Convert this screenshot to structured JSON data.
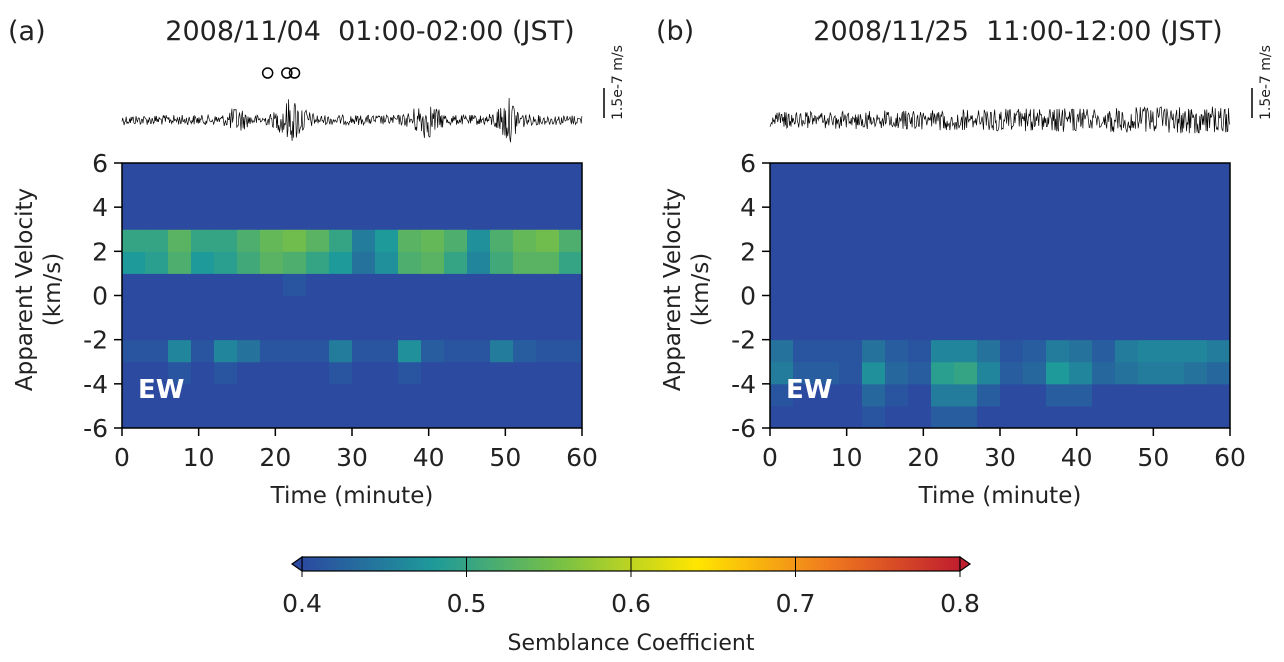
{
  "chart_data": [
    {
      "type": "heatmap",
      "panel_label": "(a)",
      "title": "2008/11/04  01:00-02:00 (JST)",
      "annotation": "EW",
      "scale_label": "1.5e-7 m/s",
      "xlabel": "Time (minute)",
      "ylabel": "Apparent Velocity",
      "ylabel_unit": "(km/s)",
      "xlim": [
        0,
        60
      ],
      "xticks": [
        0,
        10,
        20,
        30,
        40,
        50,
        60
      ],
      "ylim": [
        -6,
        6
      ],
      "yticks": [
        -6,
        -4,
        -2,
        0,
        2,
        4,
        6
      ],
      "events": [
        19,
        21.5,
        22.5
      ],
      "x": [
        1.5,
        4.5,
        7.5,
        10.5,
        13.5,
        16.5,
        19.5,
        22.5,
        25.5,
        28.5,
        31.5,
        34.5,
        37.5,
        40.5,
        43.5,
        46.5,
        49.5,
        52.5,
        55.5,
        58.5
      ],
      "y": [
        -5.5,
        -4.5,
        -3.5,
        -2.5,
        -1.5,
        -0.5,
        0.5,
        1.5,
        2.5,
        3.5,
        4.5,
        5.5
      ],
      "z": [
        [
          0.4,
          0.4,
          0.4,
          0.4,
          0.4,
          0.4,
          0.4,
          0.4,
          0.4,
          0.4,
          0.4,
          0.4,
          0.4,
          0.4,
          0.4,
          0.4,
          0.4,
          0.4,
          0.4,
          0.4
        ],
        [
          0.4,
          0.4,
          0.4,
          0.4,
          0.4,
          0.4,
          0.4,
          0.4,
          0.4,
          0.4,
          0.4,
          0.4,
          0.4,
          0.4,
          0.4,
          0.4,
          0.4,
          0.4,
          0.4,
          0.4
        ],
        [
          0.4,
          0.4,
          0.41,
          0.4,
          0.41,
          0.4,
          0.4,
          0.4,
          0.4,
          0.41,
          0.4,
          0.4,
          0.41,
          0.4,
          0.4,
          0.4,
          0.4,
          0.4,
          0.4,
          0.4
        ],
        [
          0.41,
          0.41,
          0.46,
          0.41,
          0.46,
          0.44,
          0.41,
          0.41,
          0.41,
          0.45,
          0.41,
          0.41,
          0.47,
          0.42,
          0.41,
          0.41,
          0.45,
          0.42,
          0.41,
          0.41
        ],
        [
          0.4,
          0.4,
          0.4,
          0.4,
          0.4,
          0.4,
          0.4,
          0.4,
          0.4,
          0.4,
          0.4,
          0.4,
          0.4,
          0.4,
          0.4,
          0.4,
          0.4,
          0.4,
          0.4,
          0.4
        ],
        [
          0.4,
          0.4,
          0.4,
          0.4,
          0.4,
          0.4,
          0.4,
          0.4,
          0.4,
          0.4,
          0.4,
          0.4,
          0.4,
          0.4,
          0.4,
          0.4,
          0.4,
          0.4,
          0.4,
          0.4
        ],
        [
          0.4,
          0.4,
          0.4,
          0.4,
          0.4,
          0.4,
          0.4,
          0.41,
          0.4,
          0.4,
          0.4,
          0.4,
          0.4,
          0.4,
          0.4,
          0.4,
          0.4,
          0.4,
          0.4,
          0.4
        ],
        [
          0.48,
          0.49,
          0.52,
          0.48,
          0.49,
          0.51,
          0.53,
          0.52,
          0.5,
          0.48,
          0.44,
          0.47,
          0.52,
          0.53,
          0.5,
          0.46,
          0.51,
          0.53,
          0.53,
          0.5
        ],
        [
          0.5,
          0.5,
          0.53,
          0.5,
          0.5,
          0.52,
          0.54,
          0.55,
          0.53,
          0.5,
          0.45,
          0.48,
          0.53,
          0.54,
          0.52,
          0.47,
          0.52,
          0.54,
          0.55,
          0.52
        ],
        [
          0.4,
          0.4,
          0.4,
          0.4,
          0.4,
          0.4,
          0.4,
          0.4,
          0.4,
          0.4,
          0.4,
          0.4,
          0.4,
          0.4,
          0.4,
          0.4,
          0.4,
          0.4,
          0.4,
          0.4
        ],
        [
          0.4,
          0.4,
          0.4,
          0.4,
          0.4,
          0.4,
          0.4,
          0.4,
          0.4,
          0.4,
          0.4,
          0.4,
          0.4,
          0.4,
          0.4,
          0.4,
          0.4,
          0.4,
          0.4,
          0.4
        ],
        [
          0.4,
          0.4,
          0.4,
          0.4,
          0.4,
          0.4,
          0.4,
          0.4,
          0.4,
          0.4,
          0.4,
          0.4,
          0.4,
          0.4,
          0.4,
          0.4,
          0.4,
          0.4,
          0.4,
          0.4
        ]
      ]
    },
    {
      "type": "heatmap",
      "panel_label": "(b)",
      "title": "2008/11/25  11:00-12:00 (JST)",
      "annotation": "EW",
      "scale_label": "1.5e-7 m/s",
      "xlabel": "Time (minute)",
      "ylabel": "Apparent Velocity",
      "ylabel_unit": "(km/s)",
      "xlim": [
        0,
        60
      ],
      "xticks": [
        0,
        10,
        20,
        30,
        40,
        50,
        60
      ],
      "ylim": [
        -6,
        6
      ],
      "yticks": [
        -6,
        -4,
        -2,
        0,
        2,
        4,
        6
      ],
      "x": [
        1.5,
        4.5,
        7.5,
        10.5,
        13.5,
        16.5,
        19.5,
        22.5,
        25.5,
        28.5,
        31.5,
        34.5,
        37.5,
        40.5,
        43.5,
        46.5,
        49.5,
        52.5,
        55.5,
        58.5
      ],
      "y": [
        -5.5,
        -4.5,
        -3.5,
        -2.5,
        -1.5,
        -0.5,
        0.5,
        1.5,
        2.5,
        3.5,
        4.5,
        5.5
      ],
      "z": [
        [
          0.4,
          0.4,
          0.4,
          0.4,
          0.41,
          0.4,
          0.4,
          0.42,
          0.42,
          0.4,
          0.4,
          0.4,
          0.4,
          0.4,
          0.4,
          0.4,
          0.4,
          0.4,
          0.4,
          0.4
        ],
        [
          0.41,
          0.4,
          0.4,
          0.4,
          0.43,
          0.41,
          0.4,
          0.45,
          0.45,
          0.42,
          0.4,
          0.4,
          0.42,
          0.42,
          0.4,
          0.4,
          0.4,
          0.4,
          0.4,
          0.4
        ],
        [
          0.45,
          0.42,
          0.42,
          0.41,
          0.47,
          0.43,
          0.42,
          0.49,
          0.5,
          0.46,
          0.42,
          0.43,
          0.48,
          0.46,
          0.43,
          0.44,
          0.45,
          0.45,
          0.44,
          0.43
        ],
        [
          0.44,
          0.41,
          0.41,
          0.41,
          0.44,
          0.42,
          0.41,
          0.46,
          0.46,
          0.44,
          0.41,
          0.42,
          0.45,
          0.44,
          0.42,
          0.45,
          0.46,
          0.46,
          0.46,
          0.45
        ],
        [
          0.4,
          0.4,
          0.4,
          0.4,
          0.4,
          0.4,
          0.4,
          0.4,
          0.4,
          0.4,
          0.4,
          0.4,
          0.4,
          0.4,
          0.4,
          0.4,
          0.4,
          0.4,
          0.4,
          0.4
        ],
        [
          0.4,
          0.4,
          0.4,
          0.4,
          0.4,
          0.4,
          0.4,
          0.4,
          0.4,
          0.4,
          0.4,
          0.4,
          0.4,
          0.4,
          0.4,
          0.4,
          0.4,
          0.4,
          0.4,
          0.4
        ],
        [
          0.4,
          0.4,
          0.4,
          0.4,
          0.4,
          0.4,
          0.4,
          0.4,
          0.4,
          0.4,
          0.4,
          0.4,
          0.4,
          0.4,
          0.4,
          0.4,
          0.4,
          0.4,
          0.4,
          0.4
        ],
        [
          0.4,
          0.4,
          0.4,
          0.4,
          0.4,
          0.4,
          0.4,
          0.4,
          0.4,
          0.4,
          0.4,
          0.4,
          0.4,
          0.4,
          0.4,
          0.4,
          0.4,
          0.4,
          0.4,
          0.4
        ],
        [
          0.4,
          0.4,
          0.4,
          0.4,
          0.4,
          0.4,
          0.4,
          0.4,
          0.4,
          0.4,
          0.4,
          0.4,
          0.4,
          0.4,
          0.4,
          0.4,
          0.4,
          0.4,
          0.4,
          0.4
        ],
        [
          0.4,
          0.4,
          0.4,
          0.4,
          0.4,
          0.4,
          0.4,
          0.4,
          0.4,
          0.4,
          0.4,
          0.4,
          0.4,
          0.4,
          0.4,
          0.4,
          0.4,
          0.4,
          0.4,
          0.4
        ],
        [
          0.4,
          0.4,
          0.4,
          0.4,
          0.4,
          0.4,
          0.4,
          0.4,
          0.4,
          0.4,
          0.4,
          0.4,
          0.4,
          0.4,
          0.4,
          0.4,
          0.4,
          0.4,
          0.4,
          0.4
        ],
        [
          0.4,
          0.4,
          0.4,
          0.4,
          0.4,
          0.4,
          0.4,
          0.4,
          0.4,
          0.4,
          0.4,
          0.4,
          0.4,
          0.4,
          0.4,
          0.4,
          0.4,
          0.4,
          0.4,
          0.4
        ]
      ]
    }
  ],
  "colorbar": {
    "label": "Semblance Coefficient",
    "zlim": [
      0.4,
      0.8
    ],
    "zticks": [
      0.4,
      0.5,
      0.6,
      0.7,
      0.8
    ],
    "colors": [
      "#2b4aa0",
      "#1e9a9a",
      "#7cc242",
      "#ffe600",
      "#f07a1e",
      "#c01e2e"
    ]
  }
}
